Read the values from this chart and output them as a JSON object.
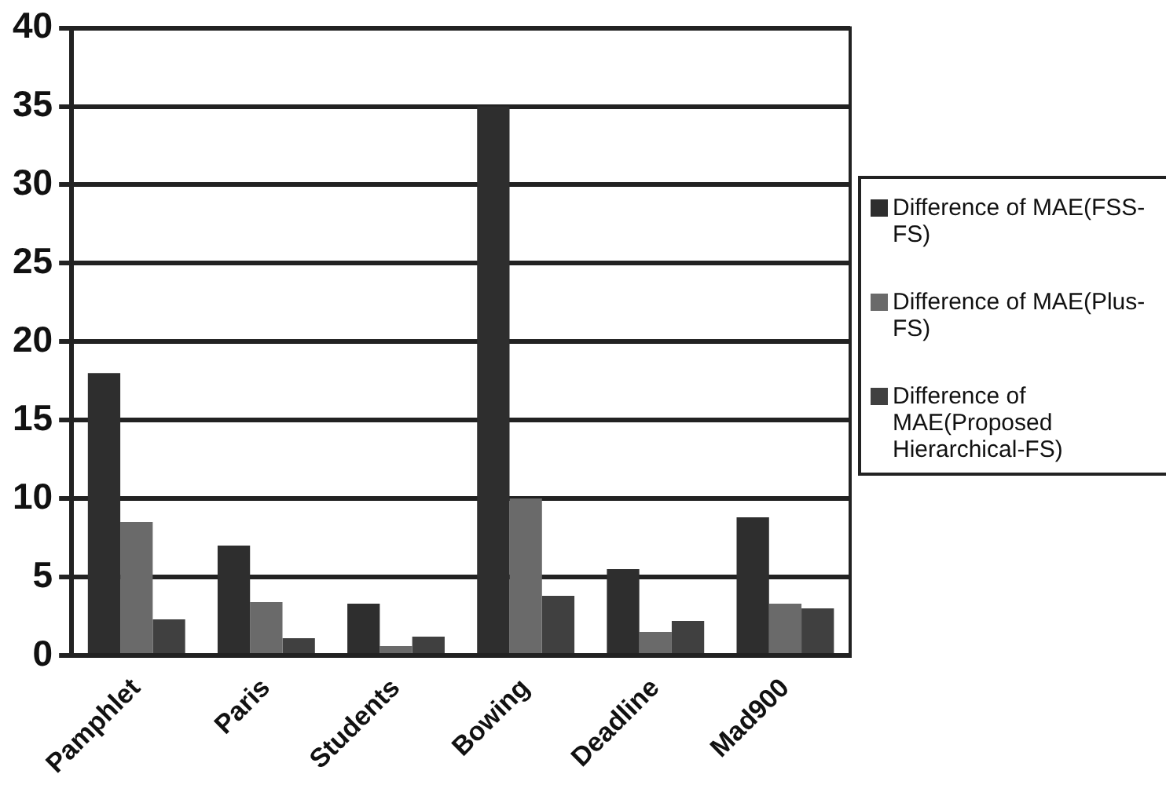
{
  "chart_data": {
    "type": "bar",
    "categories": [
      "Pamphlet",
      "Paris",
      "Students",
      "Bowing",
      "Deadline",
      "Mad900"
    ],
    "series": [
      {
        "name": "Difference of MAE(FSS-FS)",
        "color": "#2e2e2e",
        "values": [
          18,
          7,
          3.3,
          35,
          5.5,
          8.8
        ]
      },
      {
        "name": "Difference of MAE(Plus-FS)",
        "color": "#6a6a6a",
        "values": [
          8.5,
          3.4,
          0.6,
          10,
          1.5,
          3.3
        ]
      },
      {
        "name": "Difference of MAE(Proposed Hierarchical-FS)",
        "color": "#404040",
        "values": [
          2.3,
          1.1,
          1.2,
          3.8,
          2.2,
          3
        ]
      }
    ],
    "ylim": [
      0,
      40
    ],
    "yticks": [
      0,
      5,
      10,
      15,
      20,
      25,
      30,
      35,
      40
    ],
    "grid": "y",
    "legend": "right"
  }
}
